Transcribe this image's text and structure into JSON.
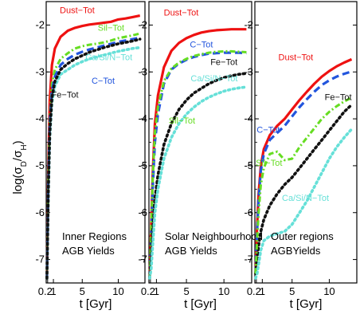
{
  "chart_data": [
    {
      "type": "line",
      "region": "inner",
      "annotation": [
        "Inner Regions",
        "AGB Yields"
      ],
      "xlabel": "t [Gyr]",
      "ylabel": "log(σD/σH)",
      "xticks": [
        "0.2",
        "1",
        "5",
        "10"
      ],
      "yticks": [
        "-7",
        "-6",
        "-5",
        "-4",
        "-3",
        "-2"
      ],
      "xlim": [
        0,
        13.7
      ],
      "ylim": [
        -7.5,
        -1.5
      ],
      "series": [
        {
          "name": "Dust−Tot",
          "color": "#ee1111",
          "dash": "solid",
          "x": [
            0.1,
            0.3,
            0.5,
            0.8,
            1.2,
            2,
            3,
            4,
            5,
            6,
            7,
            8,
            9,
            10,
            11,
            12,
            13
          ],
          "y": [
            -7.4,
            -5.0,
            -3.6,
            -2.85,
            -2.5,
            -2.25,
            -2.12,
            -2.06,
            -2.02,
            -1.99,
            -1.97,
            -1.95,
            -1.93,
            -1.88,
            -1.86,
            -1.83,
            -1.8
          ]
        },
        {
          "name": "Sil−Tot",
          "color": "#66dd22",
          "dash": "dashdot",
          "x": [
            0.1,
            0.3,
            0.5,
            0.8,
            1.2,
            2,
            3,
            4,
            5,
            6,
            7,
            8,
            9,
            10,
            11,
            12,
            13
          ],
          "y": [
            -7.4,
            -5.3,
            -4.0,
            -3.25,
            -2.95,
            -2.72,
            -2.6,
            -2.5,
            -2.45,
            -2.42,
            -2.4,
            -2.37,
            -2.33,
            -2.28,
            -2.25,
            -2.22,
            -2.18
          ]
        },
        {
          "name": "C−Tot",
          "color": "#2255dd",
          "dash": "dashed",
          "x": [
            0.1,
            0.3,
            0.5,
            0.8,
            1.2,
            2,
            3,
            4,
            5,
            6,
            7,
            8,
            9,
            10,
            11,
            12,
            13
          ],
          "y": [
            -7.4,
            -5.4,
            -4.1,
            -3.4,
            -3.1,
            -2.85,
            -2.72,
            -2.63,
            -2.57,
            -2.52,
            -2.48,
            -2.44,
            -2.4,
            -2.36,
            -2.33,
            -2.3,
            -2.27
          ]
        },
        {
          "name": "Ca/Si/N−Tot",
          "color": "#66e0d8",
          "dash": "dotted",
          "x": [
            0.1,
            0.3,
            0.5,
            0.8,
            1.2,
            2,
            3,
            4,
            5,
            6,
            7,
            8,
            9,
            10,
            11,
            12,
            13
          ],
          "y": [
            -7.4,
            -5.6,
            -4.4,
            -3.65,
            -3.3,
            -3.05,
            -2.95,
            -2.85,
            -2.78,
            -2.72,
            -2.68,
            -2.64,
            -2.6,
            -2.56,
            -2.53,
            -2.5,
            -2.48
          ]
        },
        {
          "name": "Fe−Tot",
          "color": "#111111",
          "dash": "dotted",
          "x": [
            0.1,
            0.3,
            0.5,
            0.8,
            1.2,
            2,
            3,
            4,
            5,
            6,
            7,
            8,
            9,
            10,
            11,
            12,
            13
          ],
          "y": [
            -7.4,
            -5.5,
            -4.3,
            -3.55,
            -3.2,
            -2.95,
            -2.82,
            -2.72,
            -2.65,
            -2.58,
            -2.53,
            -2.48,
            -2.44,
            -2.4,
            -2.37,
            -2.34,
            -2.3
          ]
        }
      ],
      "labels": [
        {
          "text": "Dust−Tot",
          "color": "#ee1111",
          "x": 4.3,
          "y": -1.75
        },
        {
          "text": "Sil−Tot",
          "color": "#66dd22",
          "x": 9.0,
          "y": -2.12
        },
        {
          "text": "Ca/Si/N−Tot",
          "color": "#66e0d8",
          "x": 8.7,
          "y": -2.75
        },
        {
          "text": "C−Tot",
          "color": "#2255dd",
          "x": 7.9,
          "y": -3.25
        },
        {
          "text": "Fe−Tot",
          "color": "#111111",
          "x": 2.6,
          "y": -3.55
        }
      ]
    },
    {
      "type": "line",
      "region": "solar",
      "annotation": [
        "Solar Neighbourhood",
        "AGB Yields"
      ],
      "xlabel": "t [Gyr]",
      "yticks": [
        "-7",
        "-6",
        "-5",
        "-4",
        "-3",
        "-2"
      ],
      "xticks": [
        "0.2",
        "1",
        "5",
        "10"
      ],
      "xlim": [
        0,
        13.7
      ],
      "ylim": [
        -7.5,
        -1.5
      ],
      "series": [
        {
          "name": "Dust−Tot",
          "color": "#ee1111",
          "dash": "solid",
          "x": [
            0.1,
            0.3,
            0.5,
            0.8,
            1.2,
            2,
            3,
            4,
            5,
            6,
            7,
            8,
            9,
            10,
            11,
            12,
            13
          ],
          "y": [
            -7.4,
            -6.3,
            -5.2,
            -4.1,
            -3.5,
            -2.9,
            -2.55,
            -2.38,
            -2.28,
            -2.21,
            -2.16,
            -2.13,
            -2.11,
            -2.1,
            -2.09,
            -2.09,
            -2.09
          ]
        },
        {
          "name": "C−Tot",
          "color": "#2255dd",
          "dash": "dashed",
          "x": [
            0.1,
            0.3,
            0.5,
            0.8,
            1.2,
            2,
            3,
            4,
            5,
            6,
            7,
            8,
            9,
            10,
            11,
            12,
            13
          ],
          "y": [
            -7.4,
            -6.5,
            -5.5,
            -4.5,
            -3.9,
            -3.25,
            -2.95,
            -2.82,
            -2.74,
            -2.68,
            -2.64,
            -2.61,
            -2.6,
            -2.59,
            -2.59,
            -2.59,
            -2.6
          ]
        },
        {
          "name": "Sil−Tot",
          "color": "#66dd22",
          "dash": "dashdot",
          "x": [
            0.1,
            0.3,
            0.5,
            0.8,
            1.2,
            2,
            3,
            4,
            5,
            6,
            7,
            8,
            9,
            10,
            11,
            12,
            13
          ],
          "y": [
            -7.4,
            -6.4,
            -5.3,
            -4.3,
            -3.75,
            -3.2,
            -2.93,
            -2.8,
            -2.72,
            -2.66,
            -2.62,
            -2.59,
            -2.57,
            -2.56,
            -2.56,
            -2.57,
            -2.58
          ]
        },
        {
          "name": "Fe−Tot",
          "color": "#111111",
          "dash": "dotted",
          "x": [
            0.1,
            0.3,
            0.5,
            0.8,
            1.2,
            2,
            3,
            4,
            5,
            6,
            7,
            8,
            9,
            10,
            11,
            12,
            13
          ],
          "y": [
            -7.4,
            -7.0,
            -6.4,
            -5.7,
            -5.2,
            -4.55,
            -4.1,
            -3.8,
            -3.6,
            -3.45,
            -3.35,
            -3.25,
            -3.18,
            -3.12,
            -3.08,
            -3.05,
            -3.03
          ]
        },
        {
          "name": "Ca/Si/N−Tot",
          "color": "#66e0d8",
          "dash": "dotted",
          "x": [
            0.1,
            0.3,
            0.5,
            0.8,
            1.2,
            2,
            3,
            4,
            5,
            6,
            7,
            8,
            9,
            10,
            11,
            12,
            13
          ],
          "y": [
            -7.4,
            -7.2,
            -6.7,
            -6.0,
            -5.5,
            -4.85,
            -4.4,
            -4.1,
            -3.9,
            -3.75,
            -3.63,
            -3.54,
            -3.47,
            -3.41,
            -3.37,
            -3.34,
            -3.32
          ]
        }
      ],
      "labels": [
        {
          "text": "Dust−Tot",
          "color": "#ee1111",
          "x": 4.3,
          "y": -1.8
        },
        {
          "text": "C−Tot",
          "color": "#2255dd",
          "x": 7.0,
          "y": -2.48
        },
        {
          "text": "Fe−Tot",
          "color": "#111111",
          "x": 10.0,
          "y": -2.85
        },
        {
          "text": "Ca/Si/N−Tot",
          "color": "#66e0d8",
          "x": 8.7,
          "y": -3.2
        },
        {
          "text": "Sil−Tot",
          "color": "#66dd22",
          "x": 4.4,
          "y": -4.1
        }
      ]
    },
    {
      "type": "line",
      "region": "outer",
      "annotation": [
        "Outer regions",
        "AGBYields"
      ],
      "xlabel": "t [Gyr]",
      "yticks": [
        "-7",
        "-6",
        "-5",
        "-4",
        "-3",
        "-2"
      ],
      "xticks": [
        "0.2",
        "1",
        "5",
        "10"
      ],
      "xlim": [
        0,
        13.7
      ],
      "ylim": [
        -7.5,
        -1.5
      ],
      "series": [
        {
          "name": "Dust−Tot",
          "color": "#ee1111",
          "dash": "solid",
          "x": [
            0.1,
            0.3,
            0.5,
            0.8,
            1.2,
            2,
            3,
            4,
            5,
            6,
            7,
            8,
            9,
            10,
            11,
            12,
            13
          ],
          "y": [
            -7.3,
            -6.3,
            -5.6,
            -5.0,
            -4.65,
            -4.35,
            -4.15,
            -4.0,
            -3.8,
            -3.6,
            -3.42,
            -3.25,
            -3.1,
            -2.98,
            -2.88,
            -2.8,
            -2.73
          ]
        },
        {
          "name": "C−Tot",
          "color": "#2255dd",
          "dash": "dashed",
          "x": [
            0.1,
            0.3,
            0.5,
            0.8,
            1.2,
            2,
            3,
            4,
            5,
            6,
            7,
            8,
            9,
            10,
            11,
            12,
            13
          ],
          "y": [
            -7.3,
            -6.4,
            -5.7,
            -5.1,
            -4.75,
            -4.45,
            -4.3,
            -4.15,
            -3.95,
            -3.75,
            -3.58,
            -3.42,
            -3.28,
            -3.18,
            -3.1,
            -3.04,
            -2.99
          ]
        },
        {
          "name": "Fe−Tot",
          "color": "#111111",
          "dash": "dotted",
          "x": [
            0.1,
            0.3,
            0.5,
            0.8,
            1.2,
            2,
            3,
            4,
            5,
            6,
            7,
            8,
            9,
            10,
            11,
            12,
            13
          ],
          "y": [
            -7.3,
            -7.0,
            -6.7,
            -6.4,
            -6.15,
            -5.85,
            -5.6,
            -5.4,
            -5.25,
            -5.05,
            -4.85,
            -4.65,
            -4.45,
            -4.25,
            -4.05,
            -3.85,
            -3.7
          ]
        },
        {
          "name": "Sil−Tot",
          "color": "#66dd22",
          "dash": "dashdot",
          "x": [
            0.1,
            0.3,
            0.5,
            0.8,
            1.2,
            2,
            3,
            4,
            5,
            6,
            7,
            8,
            9,
            10,
            11,
            12,
            13
          ],
          "y": [
            -7.3,
            -6.6,
            -6.0,
            -5.4,
            -5.05,
            -4.75,
            -4.7,
            -4.88,
            -4.85,
            -4.6,
            -4.4,
            -4.2,
            -4.0,
            -3.85,
            -3.73,
            -3.63,
            -3.55
          ]
        },
        {
          "name": "Ca/Si/N−Tot",
          "color": "#66e0d8",
          "dash": "dotted",
          "x": [
            0.1,
            0.3,
            0.5,
            0.8,
            1.2,
            2,
            3,
            4,
            5,
            6,
            7,
            8,
            9,
            10,
            11,
            12,
            13
          ],
          "y": [
            -7.4,
            -7.3,
            -7.1,
            -6.8,
            -6.6,
            -6.5,
            -6.45,
            -6.4,
            -6.25,
            -6.0,
            -5.75,
            -5.45,
            -5.15,
            -4.85,
            -4.6,
            -4.4,
            -4.22
          ]
        }
      ],
      "labels": [
        {
          "text": "Dust−Tot",
          "color": "#ee1111",
          "x": 5.5,
          "y": -2.75
        },
        {
          "text": "Fe−Tot",
          "color": "#111111",
          "x": 11.2,
          "y": -3.6
        },
        {
          "text": "C−Tot",
          "color": "#2255dd",
          "x": 1.8,
          "y": -4.3
        },
        {
          "text": "Sil−Tot",
          "color": "#66dd22",
          "x": 1.9,
          "y": -5.0
        },
        {
          "text": "Ca/Si/N−Tot",
          "color": "#66e0d8",
          "x": 6.8,
          "y": -5.75
        }
      ]
    }
  ]
}
